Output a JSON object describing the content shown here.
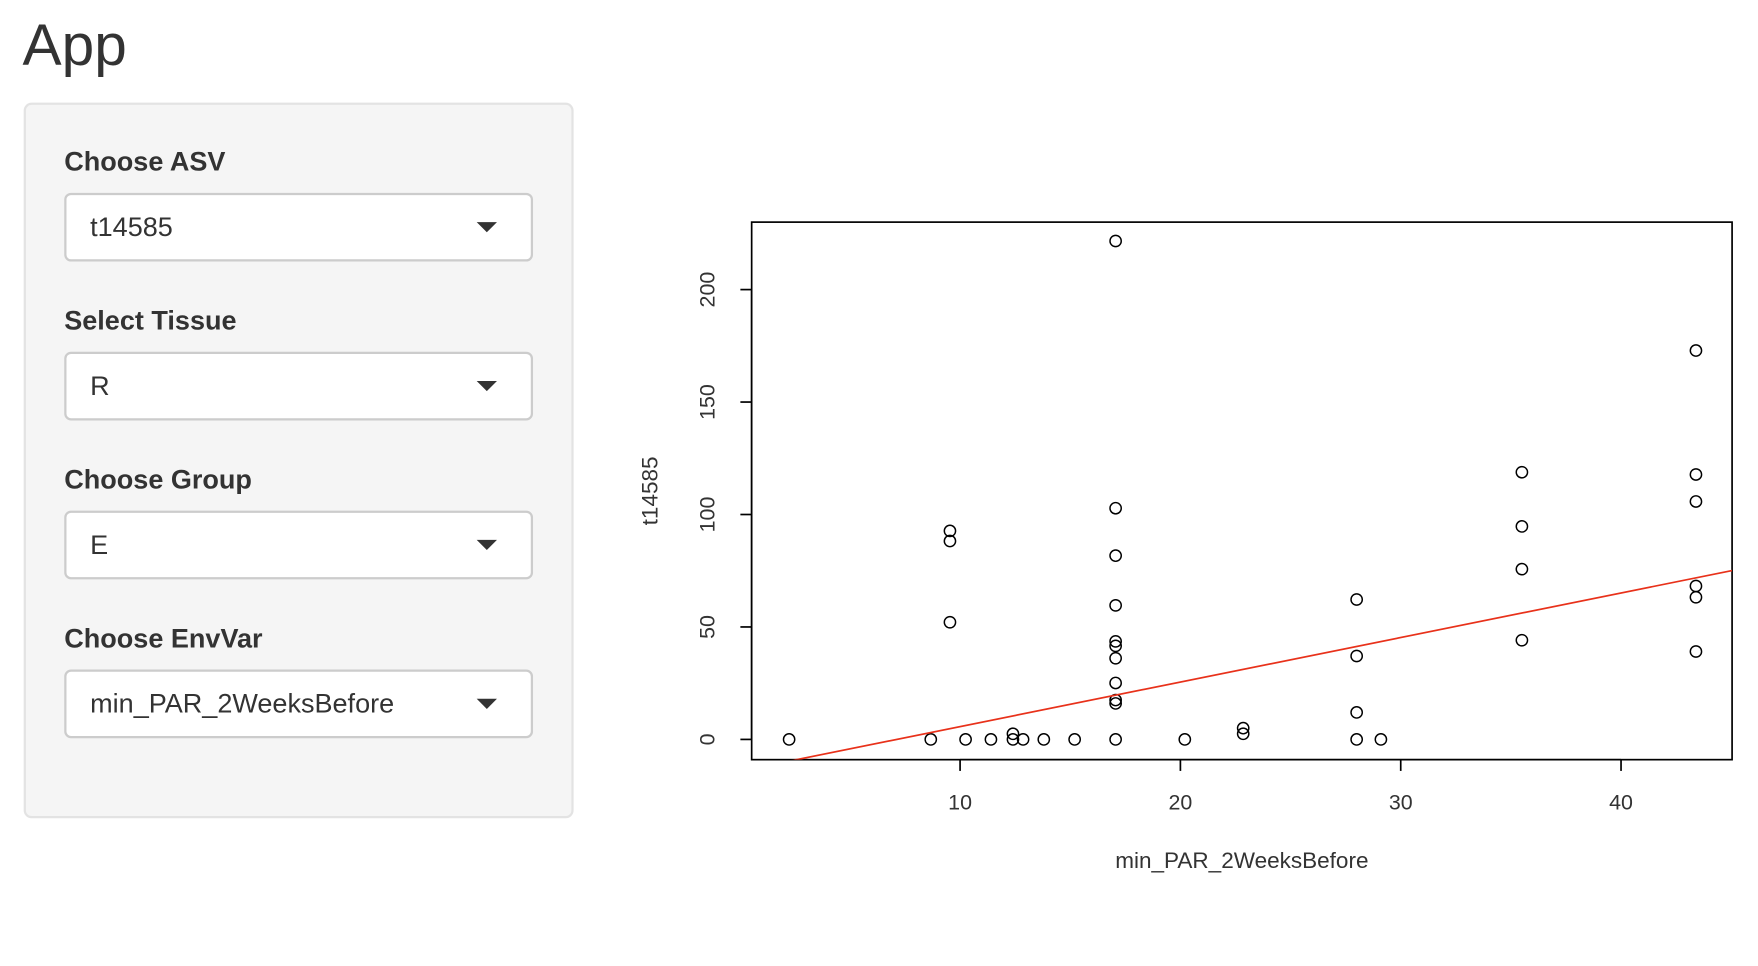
{
  "header": {
    "title": "App"
  },
  "sidebar": {
    "inputs": [
      {
        "label": "Choose ASV",
        "value": "t14585"
      },
      {
        "label": "Select Tissue",
        "value": "R"
      },
      {
        "label": "Choose Group",
        "value": "E"
      },
      {
        "label": "Choose EnvVar",
        "value": "min_PAR_2WeeksBefore"
      }
    ]
  },
  "chart_data": {
    "type": "scatter",
    "x_label": "min_PAR_2WeeksBefore",
    "y_label": "t14585",
    "x": [
      2.24,
      8.67,
      9.54,
      9.54,
      9.54,
      10.25,
      11.4,
      12.4,
      12.4,
      12.86,
      13.8,
      15.2,
      17.06,
      17.06,
      17.06,
      17.06,
      17.06,
      17.06,
      17.06,
      17.06,
      17.06,
      17.06,
      17.06,
      20.2,
      22.85,
      22.85,
      28.0,
      28.0,
      28.0,
      28.0,
      29.1,
      35.5,
      35.5,
      35.5,
      35.5,
      43.4,
      43.4,
      43.4,
      43.4,
      43.4,
      43.4
    ],
    "y": [
      0,
      0,
      92.7,
      88.2,
      52.1,
      0,
      0,
      2.5,
      0,
      0,
      0,
      0,
      221.6,
      102.8,
      81.7,
      59.6,
      43.6,
      41.6,
      36.1,
      25.1,
      17.5,
      16,
      0,
      0,
      5,
      2.5,
      62.2,
      37.1,
      12,
      0,
      0,
      118.8,
      94.7,
      75.7,
      44.1,
      172.9,
      117.8,
      105.8,
      68.2,
      63.2,
      39.1
    ],
    "xlim": [
      0.54,
      45.04
    ],
    "ylim": [
      -9,
      230
    ],
    "xticks": [
      10,
      20,
      30,
      40
    ],
    "yticks": [
      0,
      50,
      100,
      150,
      200
    ],
    "point_color": "#000000",
    "fit_line": {
      "intercept": -14.1,
      "slope": 1.98,
      "color": "#e8311a"
    }
  }
}
